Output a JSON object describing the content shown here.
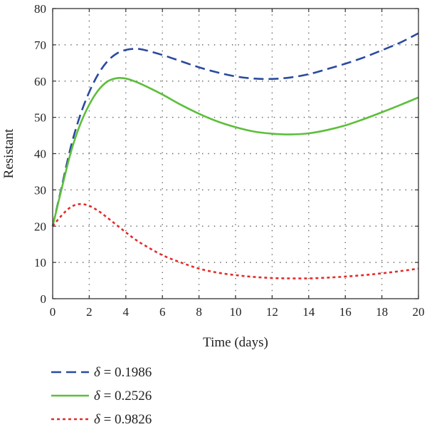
{
  "chart_data": {
    "type": "line",
    "title": "",
    "xlabel": "Time (days)",
    "ylabel": "Resistant",
    "xlim": [
      0,
      20
    ],
    "ylim": [
      0,
      80
    ],
    "xticks": [
      0,
      2,
      4,
      6,
      8,
      10,
      12,
      14,
      16,
      18,
      20
    ],
    "yticks": [
      0,
      10,
      20,
      30,
      40,
      50,
      60,
      70,
      80
    ],
    "grid": true,
    "grid_style": "dotted",
    "legend_position": "bottom-left, below plot",
    "series": [
      {
        "name": "δ = 0.1986",
        "legend_symbol": "δ",
        "legend_rest": " = 0.1986",
        "color": "#2a4a9e",
        "style": "dashed",
        "x": [
          0,
          0.5,
          1,
          1.5,
          2,
          2.5,
          3,
          3.5,
          4,
          4.5,
          5,
          6,
          7,
          8,
          9,
          10,
          11,
          12,
          13,
          14,
          15,
          16,
          17,
          18,
          19,
          20
        ],
        "y": [
          20,
          31,
          42,
          50.5,
          57,
          62,
          65.5,
          67.6,
          68.6,
          68.9,
          68.6,
          67.2,
          65.5,
          63.8,
          62.4,
          61.3,
          60.7,
          60.6,
          61,
          61.9,
          63.3,
          64.8,
          66.5,
          68.5,
          70.6,
          73.2
        ]
      },
      {
        "name": "δ = 0.2526",
        "legend_symbol": "δ",
        "legend_rest": " = 0.2526",
        "color": "#5cbf3a",
        "style": "solid",
        "x": [
          0,
          0.5,
          1,
          1.5,
          2,
          2.5,
          3,
          3.5,
          4,
          4.5,
          5,
          6,
          7,
          8,
          9,
          10,
          11,
          12,
          13,
          14,
          15,
          16,
          17,
          18,
          19,
          20
        ],
        "y": [
          20,
          30.5,
          40.5,
          48,
          53.5,
          57.5,
          59.9,
          60.8,
          60.7,
          59.9,
          58.8,
          56.3,
          53.5,
          51,
          48.9,
          47.3,
          46.1,
          45.5,
          45.3,
          45.6,
          46.5,
          47.8,
          49.5,
          51.4,
          53.4,
          55.5
        ]
      },
      {
        "name": "δ = 0.9826",
        "legend_symbol": "δ",
        "legend_rest": " = 0.9826",
        "color": "#e42a2a",
        "style": "dotted",
        "x": [
          0,
          0.5,
          1,
          1.5,
          2,
          2.5,
          3,
          3.5,
          4,
          4.5,
          5,
          6,
          7,
          8,
          9,
          10,
          11,
          12,
          13,
          14,
          15,
          16,
          17,
          18,
          19,
          20
        ],
        "y": [
          20,
          23,
          25.3,
          26.1,
          25.6,
          24.2,
          22.3,
          20.3,
          18.3,
          16.4,
          14.8,
          12,
          10,
          8.3,
          7.2,
          6.5,
          6,
          5.7,
          5.6,
          5.6,
          5.8,
          6.1,
          6.5,
          7,
          7.6,
          8.3
        ]
      }
    ]
  }
}
